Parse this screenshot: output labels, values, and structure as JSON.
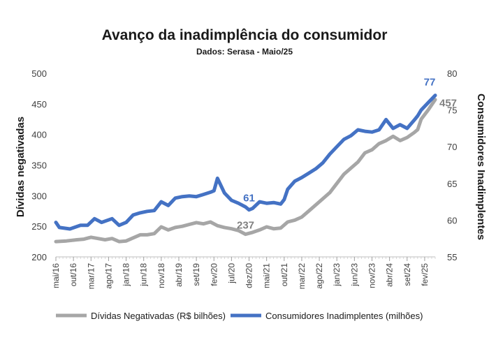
{
  "chart_data": {
    "type": "line",
    "title": "Avanço da inadimplência do consumidor",
    "subtitle": "Dados: Serasa - Maio/25",
    "y_left": {
      "label": "Dívidas negativadas",
      "range": [
        200,
        500
      ],
      "ticks": [
        "200",
        "250",
        "300",
        "350",
        "400",
        "450",
        "500"
      ]
    },
    "y_right": {
      "label": "Consumidores Inadimplentes",
      "range": [
        55,
        80
      ],
      "ticks": [
        "55",
        "60",
        "65",
        "70",
        "75",
        "80"
      ]
    },
    "x_start": "2016-05",
    "x_end": "2025-05",
    "x_ticks": [
      {
        "label": "mai/16",
        "month": "2016-05"
      },
      {
        "label": "out/16",
        "month": "2016-10"
      },
      {
        "label": "mar/17",
        "month": "2017-03"
      },
      {
        "label": "ago/17",
        "month": "2017-08"
      },
      {
        "label": "jan/18",
        "month": "2018-01"
      },
      {
        "label": "jun/18",
        "month": "2018-06"
      },
      {
        "label": "nov/18",
        "month": "2018-11"
      },
      {
        "label": "abr/19",
        "month": "2019-04"
      },
      {
        "label": "set/19",
        "month": "2019-09"
      },
      {
        "label": "fev/20",
        "month": "2020-02"
      },
      {
        "label": "jul/20",
        "month": "2020-07"
      },
      {
        "label": "dez/20",
        "month": "2020-12"
      },
      {
        "label": "mai/21",
        "month": "2021-05"
      },
      {
        "label": "out/21",
        "month": "2021-10"
      },
      {
        "label": "mar/22",
        "month": "2022-03"
      },
      {
        "label": "ago/22",
        "month": "2022-08"
      },
      {
        "label": "jan/23",
        "month": "2023-01"
      },
      {
        "label": "jun/23",
        "month": "2023-06"
      },
      {
        "label": "nov/23",
        "month": "2023-11"
      },
      {
        "label": "abr/24",
        "month": "2024-04"
      },
      {
        "label": "set/24",
        "month": "2024-09"
      },
      {
        "label": "fev/25",
        "month": "2025-02"
      }
    ],
    "series": [
      {
        "name": "Dívidas Negativadas (R$ bilhões)",
        "axis": "left",
        "color": "#a6a6a6",
        "points": [
          [
            "2016-05",
            225
          ],
          [
            "2016-08",
            226
          ],
          [
            "2016-11",
            228
          ],
          [
            "2017-01",
            229
          ],
          [
            "2017-03",
            232
          ],
          [
            "2017-05",
            230
          ],
          [
            "2017-07",
            228
          ],
          [
            "2017-09",
            230
          ],
          [
            "2017-11",
            225
          ],
          [
            "2018-01",
            226
          ],
          [
            "2018-03",
            231
          ],
          [
            "2018-05",
            236
          ],
          [
            "2018-07",
            236
          ],
          [
            "2018-09",
            238
          ],
          [
            "2018-11",
            249
          ],
          [
            "2019-01",
            244
          ],
          [
            "2019-03",
            248
          ],
          [
            "2019-05",
            250
          ],
          [
            "2019-07",
            253
          ],
          [
            "2019-09",
            256
          ],
          [
            "2019-11",
            254
          ],
          [
            "2020-01",
            257
          ],
          [
            "2020-03",
            251
          ],
          [
            "2020-05",
            248
          ],
          [
            "2020-07",
            246
          ],
          [
            "2020-09",
            243
          ],
          [
            "2020-11",
            237
          ],
          [
            "2021-01",
            240
          ],
          [
            "2021-03",
            244
          ],
          [
            "2021-05",
            249
          ],
          [
            "2021-07",
            246
          ],
          [
            "2021-09",
            247
          ],
          [
            "2021-11",
            257
          ],
          [
            "2022-01",
            260
          ],
          [
            "2022-03",
            265
          ],
          [
            "2022-05",
            275
          ],
          [
            "2022-07",
            285
          ],
          [
            "2022-09",
            295
          ],
          [
            "2022-11",
            305
          ],
          [
            "2023-01",
            320
          ],
          [
            "2023-03",
            335
          ],
          [
            "2023-05",
            345
          ],
          [
            "2023-07",
            355
          ],
          [
            "2023-09",
            370
          ],
          [
            "2023-11",
            375
          ],
          [
            "2024-01",
            385
          ],
          [
            "2024-03",
            390
          ],
          [
            "2024-05",
            397
          ],
          [
            "2024-07",
            390
          ],
          [
            "2024-09",
            395
          ],
          [
            "2024-11",
            403
          ],
          [
            "2024-12",
            408
          ],
          [
            "2025-01",
            425
          ],
          [
            "2025-03",
            440
          ],
          [
            "2025-05",
            457
          ]
        ]
      },
      {
        "name": "Consumidores Inadimplentes (milhões)",
        "axis": "right",
        "color": "#4472c4",
        "points": [
          [
            "2016-05",
            59.7
          ],
          [
            "2016-06",
            59
          ],
          [
            "2016-09",
            58.8
          ],
          [
            "2016-12",
            59.3
          ],
          [
            "2017-02",
            59.3
          ],
          [
            "2017-04",
            60.2
          ],
          [
            "2017-06",
            59.7
          ],
          [
            "2017-09",
            60.2
          ],
          [
            "2017-11",
            59.3
          ],
          [
            "2018-01",
            59.7
          ],
          [
            "2018-03",
            60.7
          ],
          [
            "2018-05",
            61
          ],
          [
            "2018-07",
            61.2
          ],
          [
            "2018-09",
            61.3
          ],
          [
            "2018-11",
            62.5
          ],
          [
            "2019-01",
            62
          ],
          [
            "2019-03",
            63
          ],
          [
            "2019-05",
            63.2
          ],
          [
            "2019-07",
            63.3
          ],
          [
            "2019-09",
            63.2
          ],
          [
            "2019-11",
            63.5
          ],
          [
            "2020-01",
            63.8
          ],
          [
            "2020-02",
            64
          ],
          [
            "2020-03",
            65.7
          ],
          [
            "2020-05",
            63.7
          ],
          [
            "2020-07",
            62.7
          ],
          [
            "2020-09",
            62.3
          ],
          [
            "2020-11",
            61.8
          ],
          [
            "2020-12",
            61.4
          ],
          [
            "2021-01",
            61.6
          ],
          [
            "2021-03",
            62.5
          ],
          [
            "2021-05",
            62.3
          ],
          [
            "2021-07",
            62.4
          ],
          [
            "2021-09",
            62.2
          ],
          [
            "2021-10",
            62.8
          ],
          [
            "2021-11",
            64.2
          ],
          [
            "2022-01",
            65.3
          ],
          [
            "2022-03",
            65.8
          ],
          [
            "2022-05",
            66.4
          ],
          [
            "2022-07",
            67
          ],
          [
            "2022-09",
            67.8
          ],
          [
            "2022-11",
            69
          ],
          [
            "2023-01",
            70
          ],
          [
            "2023-03",
            71
          ],
          [
            "2023-05",
            71.5
          ],
          [
            "2023-07",
            72.3
          ],
          [
            "2023-09",
            72.1
          ],
          [
            "2023-11",
            72
          ],
          [
            "2024-01",
            72.3
          ],
          [
            "2024-03",
            73.7
          ],
          [
            "2024-05",
            72.5
          ],
          [
            "2024-07",
            73
          ],
          [
            "2024-09",
            72.5
          ],
          [
            "2024-11",
            73.6
          ],
          [
            "2024-12",
            74.2
          ],
          [
            "2025-01",
            75
          ],
          [
            "2025-03",
            76
          ],
          [
            "2025-05",
            77
          ]
        ]
      }
    ],
    "annotations": [
      {
        "text": "237",
        "series": 0,
        "month": "2020-11",
        "value": 237,
        "color": "#808080"
      },
      {
        "text": "457",
        "series": 0,
        "month": "2025-05",
        "value": 457,
        "color": "#808080"
      },
      {
        "text": "61",
        "series": 1,
        "month": "2020-12",
        "value": 61.4,
        "color": "#4472c4"
      },
      {
        "text": "77",
        "series": 1,
        "month": "2025-05",
        "value": 77,
        "color": "#4472c4"
      }
    ],
    "grid": false,
    "legend_position": "bottom"
  }
}
